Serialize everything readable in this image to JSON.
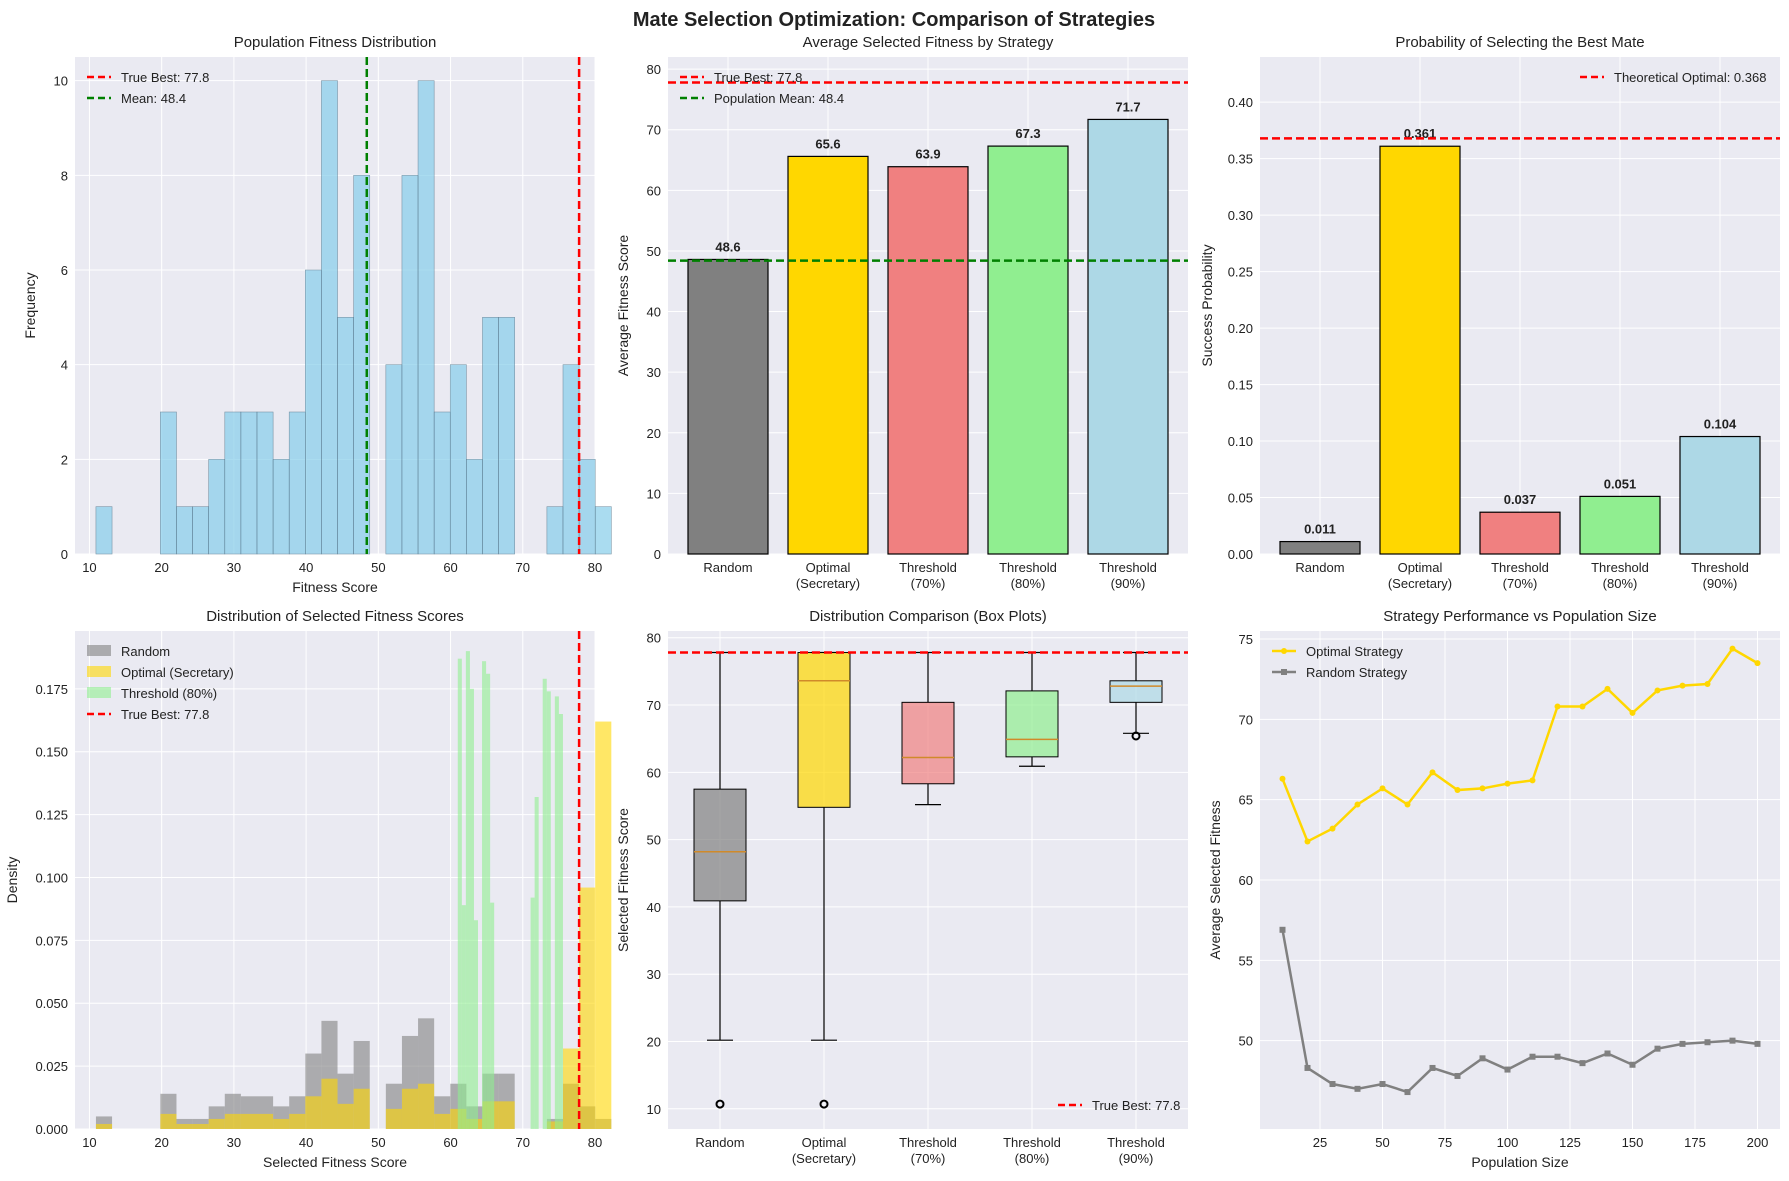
{
  "figure": {
    "title": "Mate Selection Optimization: Comparison of Strategies"
  },
  "colors": {
    "panel_bg": "#EAEAF2",
    "grid": "#FFFFFF",
    "random": "#808080",
    "optimal": "#FFD700",
    "threshold70": "#F08080",
    "threshold80": "#90EE90",
    "threshold90": "#ADD8E6",
    "hist": "#87CEEB",
    "true_best": "#FF0000",
    "mean": "#008000",
    "line_random": "#808080",
    "line_optimal": "#FFD700"
  },
  "chart_data": [
    {
      "id": "population",
      "type": "bar",
      "title": "Population Fitness Distribution",
      "xlabel": "Fitness Score",
      "ylabel": "Frequency",
      "xlim": [
        8,
        80
      ],
      "ylim": [
        0,
        10.5
      ],
      "xticks": [
        10,
        20,
        30,
        40,
        50,
        60,
        70,
        80
      ],
      "yticks": [
        0,
        2,
        4,
        6,
        8,
        10
      ],
      "bin_start": 10.9,
      "bin_width": 2.23,
      "counts": [
        1,
        0,
        0,
        0,
        3,
        1,
        1,
        2,
        3,
        3,
        3,
        2,
        3,
        6,
        10,
        5,
        8,
        0,
        4,
        8,
        10,
        3,
        4,
        2,
        5,
        5,
        0,
        0,
        1,
        4,
        2,
        1
      ],
      "legend": [
        {
          "label": "True Best: 77.8",
          "kind": "dash",
          "color": "#FF0000"
        },
        {
          "label": "Mean: 48.4",
          "kind": "dash",
          "color": "#008000"
        }
      ],
      "vlines": [
        {
          "value": 77.8,
          "color": "#FF0000"
        },
        {
          "value": 48.4,
          "color": "#008000"
        }
      ]
    },
    {
      "id": "avg_fitness",
      "type": "bar",
      "title": "Average Selected Fitness by Strategy",
      "ylabel": "Average Fitness Score",
      "ylim": [
        0,
        82
      ],
      "yticks": [
        0,
        10,
        20,
        30,
        40,
        50,
        60,
        70,
        80
      ],
      "categories": [
        [
          "Random"
        ],
        [
          "Optimal",
          "(Secretary)"
        ],
        [
          "Threshold",
          "(70%)"
        ],
        [
          "Threshold",
          "(80%)"
        ],
        [
          "Threshold",
          "(90%)"
        ]
      ],
      "values": [
        48.6,
        65.6,
        63.9,
        67.3,
        71.7
      ],
      "value_labels": [
        "48.6",
        "65.6",
        "63.9",
        "67.3",
        "71.7"
      ],
      "bar_colors": [
        "#808080",
        "#FFD700",
        "#F08080",
        "#90EE90",
        "#ADD8E6"
      ],
      "legend": [
        {
          "label": "True Best: 77.8",
          "kind": "dash",
          "color": "#FF0000"
        },
        {
          "label": "Population Mean: 48.4",
          "kind": "dash",
          "color": "#008000"
        }
      ],
      "hlines": [
        {
          "value": 77.8,
          "color": "#FF0000"
        },
        {
          "value": 48.4,
          "color": "#008000"
        }
      ]
    },
    {
      "id": "success_prob",
      "type": "bar",
      "title": "Probability of Selecting the Best Mate",
      "ylabel": "Success Probability",
      "ylim": [
        0,
        0.44
      ],
      "yticks": [
        0,
        0.05,
        0.1,
        0.15,
        0.2,
        0.25,
        0.3,
        0.35,
        0.4
      ],
      "ytick_labels": [
        "0.00",
        "0.05",
        "0.10",
        "0.15",
        "0.20",
        "0.25",
        "0.30",
        "0.35",
        "0.40"
      ],
      "categories": [
        [
          "Random"
        ],
        [
          "Optimal",
          "(Secretary)"
        ],
        [
          "Threshold",
          "(70%)"
        ],
        [
          "Threshold",
          "(80%)"
        ],
        [
          "Threshold",
          "(90%)"
        ]
      ],
      "values": [
        0.011,
        0.361,
        0.037,
        0.051,
        0.104
      ],
      "value_labels": [
        "0.011",
        "0.361",
        "0.037",
        "0.051",
        "0.104"
      ],
      "bar_colors": [
        "#808080",
        "#FFD700",
        "#F08080",
        "#90EE90",
        "#ADD8E6"
      ],
      "legend": [
        {
          "label": "Theoretical Optimal: 0.368",
          "kind": "dash",
          "color": "#FF0000"
        }
      ],
      "hlines": [
        {
          "value": 0.368,
          "color": "#FF0000"
        }
      ]
    },
    {
      "id": "selected_dist",
      "type": "bar",
      "title": "Distribution of Selected Fitness Scores",
      "xlabel": "Selected Fitness Score",
      "ylabel": "Density",
      "xlim": [
        8,
        80
      ],
      "ylim": [
        0,
        0.198
      ],
      "xticks": [
        10,
        20,
        30,
        40,
        50,
        60,
        70,
        80
      ],
      "yticks": [
        0,
        0.025,
        0.05,
        0.075,
        0.1,
        0.125,
        0.15,
        0.175
      ],
      "ytick_labels": [
        "0.000",
        "0.025",
        "0.050",
        "0.075",
        "0.100",
        "0.125",
        "0.150",
        "0.175"
      ],
      "series": [
        {
          "name": "Random",
          "color": "#808080",
          "opacity": 0.6,
          "bin_start": 10.9,
          "bin_width": 2.23,
          "values": [
            0.005,
            0,
            0,
            0,
            0.014,
            0.004,
            0.004,
            0.009,
            0.014,
            0.013,
            0.013,
            0.009,
            0.013,
            0.03,
            0.043,
            0.022,
            0.035,
            0,
            0.018,
            0.037,
            0.044,
            0.013,
            0.018,
            0.009,
            0.022,
            0.022,
            0,
            0,
            0.004,
            0.018,
            0.009,
            0.004
          ]
        },
        {
          "name": "Optimal (Secretary)",
          "color": "#FFD700",
          "opacity": 0.6,
          "bin_start": 10.9,
          "bin_width": 2.23,
          "values": [
            0.002,
            0,
            0,
            0,
            0.006,
            0.002,
            0.002,
            0.004,
            0.006,
            0.006,
            0.006,
            0.004,
            0.006,
            0.013,
            0.02,
            0.01,
            0.016,
            0,
            0.008,
            0.016,
            0.018,
            0.006,
            0.008,
            0.004,
            0.011,
            0.011,
            0,
            0,
            0.003,
            0.032,
            0.096,
            0.162
          ]
        },
        {
          "name": "Threshold (80%)",
          "color": "#90EE90",
          "opacity": 0.6,
          "bin_start": 61.0,
          "bin_width": 0.56,
          "values": [
            0.187,
            0.089,
            0.19,
            0.175,
            0.083,
            0,
            0.186,
            0.181,
            0.09,
            0,
            0,
            0,
            0,
            0,
            0,
            0,
            0,
            0,
            0.092,
            0.132,
            0,
            0.179,
            0.174,
            0,
            0.172,
            0.165,
            0
          ]
        }
      ],
      "legend": [
        {
          "label": "Random",
          "kind": "patch",
          "color": "#808080"
        },
        {
          "label": "Optimal (Secretary)",
          "kind": "patch",
          "color": "#FFD700"
        },
        {
          "label": "Threshold (80%)",
          "kind": "patch",
          "color": "#90EE90"
        },
        {
          "label": "True Best: 77.8",
          "kind": "dash",
          "color": "#FF0000"
        }
      ],
      "vlines": [
        {
          "value": 77.8,
          "color": "#FF0000"
        }
      ]
    },
    {
      "id": "boxplots",
      "type": "box",
      "title": "Distribution Comparison (Box Plots)",
      "ylabel": "Selected Fitness Score",
      "ylim": [
        7,
        81
      ],
      "yticks": [
        10,
        20,
        30,
        40,
        50,
        60,
        70,
        80
      ],
      "categories": [
        [
          "Random"
        ],
        [
          "Optimal",
          "(Secretary)"
        ],
        [
          "Threshold",
          "(70%)"
        ],
        [
          "Threshold",
          "(80%)"
        ],
        [
          "Threshold",
          "(90%)"
        ]
      ],
      "boxes": [
        {
          "whisker_low": 20.2,
          "q1": 40.9,
          "median": 48.2,
          "q3": 57.5,
          "whisker_high": 77.8,
          "outliers": [
            10.7
          ],
          "color": "#808080"
        },
        {
          "whisker_low": 20.2,
          "q1": 54.8,
          "median": 73.6,
          "q3": 77.8,
          "whisker_high": 77.8,
          "outliers": [
            10.7
          ],
          "color": "#FFD700"
        },
        {
          "whisker_low": 55.2,
          "q1": 58.3,
          "median": 62.2,
          "q3": 70.4,
          "whisker_high": 77.8,
          "outliers": [],
          "color": "#F08080"
        },
        {
          "whisker_low": 60.9,
          "q1": 62.3,
          "median": 64.9,
          "q3": 72.1,
          "whisker_high": 77.8,
          "outliers": [],
          "color": "#90EE90"
        },
        {
          "whisker_low": 65.8,
          "q1": 70.4,
          "median": 72.8,
          "q3": 73.6,
          "whisker_high": 77.8,
          "outliers": [
            65.4
          ],
          "color": "#ADD8E6"
        }
      ],
      "legend": [
        {
          "label": "True Best: 77.8",
          "kind": "dash",
          "color": "#FF0000"
        }
      ],
      "hlines": [
        {
          "value": 77.8,
          "color": "#FF0000"
        }
      ]
    },
    {
      "id": "pop_size",
      "type": "line",
      "title": "Strategy Performance vs Population Size",
      "xlabel": "Population Size",
      "ylabel": "Average Selected Fitness",
      "xlim": [
        1,
        209
      ],
      "ylim": [
        44.5,
        75.5
      ],
      "xticks": [
        25,
        50,
        75,
        100,
        125,
        150,
        175,
        200
      ],
      "yticks": [
        50,
        55,
        60,
        65,
        70,
        75
      ],
      "x": [
        10,
        20,
        30,
        40,
        50,
        60,
        70,
        80,
        90,
        100,
        110,
        120,
        130,
        140,
        150,
        160,
        170,
        180,
        190,
        200
      ],
      "series": [
        {
          "name": "Optimal Strategy",
          "color": "#FFD700",
          "marker": "circle",
          "values": [
            66.3,
            62.4,
            63.2,
            64.7,
            65.7,
            64.7,
            66.7,
            65.6,
            65.7,
            66.0,
            66.2,
            70.8,
            70.8,
            71.9,
            70.4,
            71.8,
            72.1,
            72.2,
            74.4,
            73.5
          ]
        },
        {
          "name": "Random Strategy",
          "color": "#808080",
          "marker": "square",
          "values": [
            56.9,
            48.3,
            47.3,
            47.0,
            47.3,
            46.8,
            48.3,
            47.8,
            48.9,
            48.2,
            49.0,
            49.0,
            48.6,
            49.2,
            48.5,
            49.5,
            49.8,
            49.9,
            50.0,
            49.8
          ]
        }
      ],
      "legend": [
        {
          "label": "Optimal Strategy",
          "kind": "line-circle",
          "color": "#FFD700"
        },
        {
          "label": "Random Strategy",
          "kind": "line-square",
          "color": "#808080"
        }
      ]
    }
  ]
}
